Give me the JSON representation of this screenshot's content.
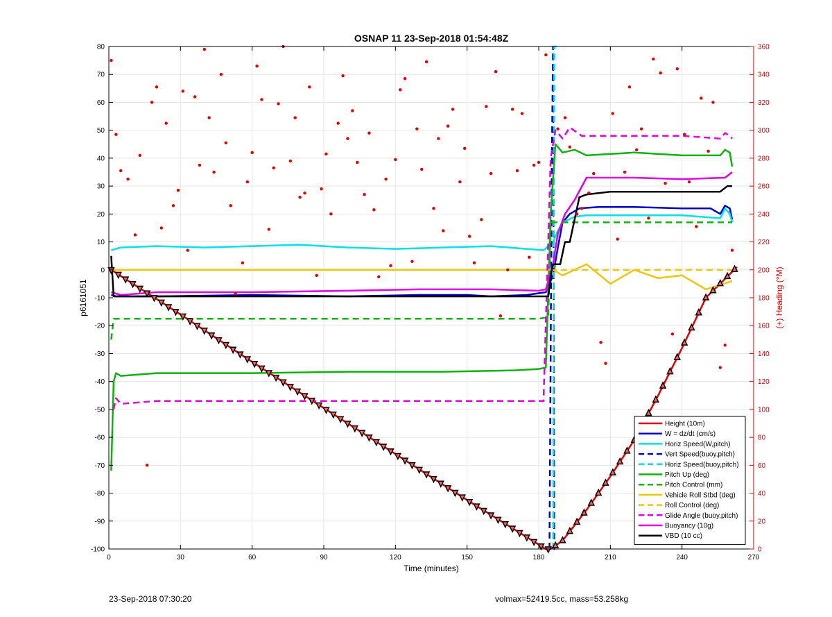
{
  "footer": {
    "left": "23-Sep-2018 07:30:20",
    "right": "volmax=52419.5cc, mass=53.258kg"
  },
  "colors": {
    "axis": "#000000",
    "right_axis": "#d40000",
    "grid": "#e6e6e6"
  },
  "chart_data": {
    "type": "line",
    "title": "OSNAP 11 23-Sep-2018 01:54:48Z",
    "xlabel": "Time (minutes)",
    "ylabel": "p6161051",
    "ylabel_right": "(+) Heading (°M)",
    "xlim": [
      0,
      270
    ],
    "ylim": [
      -100,
      80
    ],
    "ylim_right": [
      0,
      360
    ],
    "xticks": [
      0,
      30,
      60,
      90,
      120,
      150,
      180,
      210,
      240,
      270
    ],
    "yticks": [
      -100,
      -90,
      -80,
      -70,
      -60,
      -50,
      -40,
      -30,
      -20,
      -10,
      0,
      10,
      20,
      30,
      40,
      50,
      60,
      70,
      80
    ],
    "yticks_right": [
      0,
      20,
      40,
      60,
      80,
      100,
      120,
      140,
      160,
      180,
      200,
      220,
      240,
      260,
      280,
      300,
      320,
      340,
      360
    ],
    "grid": true,
    "legend_position": "bottom-right",
    "series": [
      {
        "name": "Height (10m)",
        "color": "#e00000",
        "style": "solid",
        "x": [
          1,
          30,
          60,
          90,
          120,
          150,
          183,
          185,
          190,
          200,
          210,
          220,
          230,
          240,
          250,
          263
        ],
        "y": [
          0,
          -16,
          -33,
          -49.5,
          -66,
          -82.5,
          -100,
          -100,
          -97,
          -86,
          -74,
          -61,
          -45,
          -28,
          -10,
          1
        ]
      },
      {
        "name": "W = dz/dt (cm/s)",
        "color": "#0000c8",
        "style": "solid",
        "x": [
          1,
          3,
          20,
          60,
          100,
          130,
          150,
          160,
          175,
          183,
          186,
          188,
          190,
          193,
          197,
          205,
          220,
          240,
          252,
          256,
          258,
          260,
          261
        ],
        "y": [
          -9,
          -9.5,
          -9.5,
          -9,
          -9.5,
          -9,
          -9,
          -9.5,
          -9,
          -8,
          -2,
          8,
          17,
          20,
          22,
          22.5,
          22.5,
          22,
          22,
          20,
          23,
          22,
          18
        ]
      },
      {
        "name": "Horiz Speed(W,pitch)",
        "color": "#00e0e8",
        "style": "solid",
        "x": [
          1,
          5,
          20,
          40,
          60,
          80,
          100,
          120,
          140,
          160,
          175,
          182,
          186,
          188,
          190,
          195,
          200,
          220,
          240,
          256,
          258,
          260,
          261
        ],
        "y": [
          7,
          8,
          8.5,
          8,
          8.5,
          9,
          8,
          7.5,
          8,
          8.5,
          7.5,
          7,
          10,
          14,
          17,
          19,
          19.5,
          19.5,
          19.5,
          18.5,
          22,
          20,
          17
        ]
      },
      {
        "name": "Vert Speed(buoy,pitch)",
        "color": "#0000c8",
        "style": "dashed",
        "x": [
          184.5,
          185.5,
          186,
          186.5,
          187.5
        ],
        "y": [
          -100,
          40,
          80,
          -100,
          -100
        ]
      },
      {
        "name": "Horiz Speed(buoy,pitch)",
        "color": "#00e0e8",
        "style": "dashed",
        "x": [
          186,
          186.5,
          187.5
        ],
        "y": [
          -100,
          80,
          80
        ]
      },
      {
        "name": "Pitch Up (deg)",
        "color": "#10b010",
        "style": "solid",
        "x": [
          1,
          2,
          3,
          5,
          20,
          60,
          100,
          140,
          170,
          180,
          183,
          185,
          187,
          190,
          195,
          200,
          220,
          240,
          256,
          258,
          260,
          261
        ],
        "y": [
          -72,
          -40,
          -37,
          -38,
          -37,
          -37,
          -36.5,
          -36.5,
          -36,
          -35.5,
          -35,
          20,
          45,
          42,
          43,
          41,
          42,
          41,
          41,
          43,
          42,
          37
        ]
      },
      {
        "name": "Pitch Control (mm)",
        "color": "#10b010",
        "style": "dashed",
        "x": [
          1,
          2,
          3,
          60,
          120,
          180,
          184,
          185,
          187,
          200,
          240,
          261
        ],
        "y": [
          -25,
          -17.5,
          -17.5,
          -17.5,
          -17.5,
          -17.5,
          -17,
          17,
          17,
          17,
          17,
          17
        ]
      },
      {
        "name": "Vehicle Roll Stbd (deg)",
        "color": "#e8c810",
        "style": "solid",
        "x": [
          2,
          184,
          186,
          190,
          200,
          210,
          220,
          230,
          240,
          250,
          261
        ],
        "y": [
          0,
          0,
          0,
          -2,
          2,
          -5,
          0,
          -3,
          -2,
          -7,
          -4
        ]
      },
      {
        "name": "Roll Control (deg)",
        "color": "#e8c810",
        "style": "dashed",
        "x": [
          2,
          184,
          186,
          200,
          230,
          261
        ],
        "y": [
          0,
          0,
          0,
          0,
          0,
          0
        ]
      },
      {
        "name": "Glide Angle (buoy,pitch)",
        "color": "#e000e0",
        "style": "dashed",
        "x": [
          2,
          3,
          5,
          20,
          60,
          100,
          140,
          180,
          182,
          185,
          187,
          190,
          193,
          198,
          210,
          240,
          256,
          258,
          260,
          261
        ],
        "y": [
          -50,
          -46,
          -48,
          -47,
          -47,
          -47,
          -47,
          -47,
          -47,
          40,
          50,
          47,
          51,
          48,
          48,
          48,
          47,
          49,
          48,
          47
        ]
      },
      {
        "name": "Buoyancy (10g)",
        "color": "#e000e0",
        "style": "solid",
        "x": [
          1,
          5,
          20,
          60,
          100,
          130,
          160,
          180,
          183,
          186,
          188,
          191,
          195,
          200,
          220,
          240,
          258,
          261
        ],
        "y": [
          -8,
          -9,
          -8,
          -8,
          -7.5,
          -7,
          -7,
          -7.5,
          -7,
          2,
          13,
          20,
          25,
          33,
          33,
          32.5,
          33,
          35
        ]
      },
      {
        "name": "VBD (10 cc)",
        "color": "#000000",
        "style": "solid",
        "x": [
          1,
          2,
          4,
          20,
          60,
          100,
          140,
          175,
          184,
          185,
          186,
          189,
          191,
          193,
          197,
          200,
          210,
          240,
          256,
          259,
          261
        ],
        "y": [
          5,
          -9.5,
          -9.5,
          -9.5,
          -9.5,
          -9.5,
          -9.5,
          -9.5,
          -9.5,
          -2,
          2,
          2,
          10,
          10,
          26,
          27,
          28,
          28,
          28,
          30,
          30
        ]
      }
    ],
    "heading_points": {
      "name": "Heading",
      "color": "#e00000",
      "x": [
        1,
        3,
        5,
        8,
        11,
        13,
        16,
        18,
        20,
        22,
        24,
        27,
        29,
        31,
        33,
        36,
        38,
        40,
        42,
        44,
        47,
        49,
        51,
        53,
        56,
        58,
        60,
        62,
        64,
        67,
        69,
        71,
        73,
        76,
        78,
        80,
        82,
        84,
        87,
        89,
        91,
        93,
        96,
        98,
        100,
        102,
        104,
        107,
        109,
        111,
        113,
        116,
        118,
        120,
        122,
        124,
        127,
        129,
        131,
        133,
        136,
        138,
        140,
        142,
        144,
        147,
        149,
        151,
        153,
        156,
        158,
        160,
        162,
        164,
        167,
        169,
        171,
        173,
        176,
        178,
        180,
        183,
        188,
        191,
        193,
        196,
        198,
        201,
        203,
        206,
        208,
        211,
        213,
        216,
        218,
        221,
        223,
        226,
        228,
        231,
        233,
        236,
        238,
        241,
        243,
        246,
        248,
        251,
        253,
        256,
        258,
        261
      ],
      "y": [
        350,
        297,
        271,
        265,
        225,
        282,
        60,
        320,
        331,
        230,
        305,
        246,
        257,
        328,
        214,
        324,
        275,
        358,
        309,
        270,
        340,
        291,
        246,
        183,
        205,
        263,
        284,
        346,
        322,
        229,
        273,
        319,
        360,
        278,
        309,
        252,
        255,
        331,
        196,
        258,
        283,
        240,
        305,
        339,
        294,
        314,
        277,
        254,
        298,
        243,
        195,
        265,
        203,
        279,
        329,
        337,
        206,
        301,
        272,
        349,
        244,
        294,
        228,
        303,
        315,
        263,
        287,
        224,
        205,
        236,
        317,
        269,
        342,
        167,
        200,
        315,
        271,
        312,
        209,
        275,
        277,
        354,
        301,
        309,
        288,
        240,
        244,
        255,
        269,
        148,
        133,
        312,
        222,
        270,
        331,
        286,
        301,
        237,
        351,
        341,
        262,
        154,
        344,
        297,
        263,
        231,
        323,
        285,
        320,
        130,
        146,
        214
      ]
    },
    "depth_markers": {
      "name": "Depth samples",
      "fill": "#ff6060",
      "stroke": "#000000",
      "x_start": 1,
      "x_end": 263,
      "x_step": 3
    }
  }
}
